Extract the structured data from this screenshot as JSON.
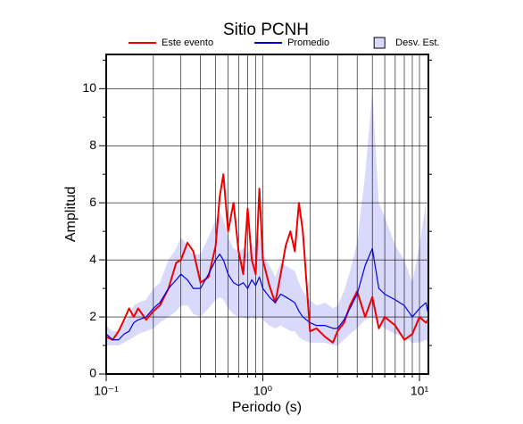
{
  "chart_data": {
    "type": "line",
    "title": "Sitio PCNH",
    "xlabel": "Periodo (s)",
    "ylabel": "Amplitud",
    "xscale": "log",
    "xlim": [
      0.1,
      11.4
    ],
    "ylim": [
      0,
      11.2
    ],
    "xticks": [
      {
        "value": 0.1,
        "label": "10⁻¹"
      },
      {
        "value": 1,
        "label": "10⁰"
      },
      {
        "value": 10,
        "label": "10¹"
      }
    ],
    "xminorticks": [
      0.2,
      0.3,
      0.4,
      0.5,
      0.6,
      0.7,
      0.8,
      0.9,
      2,
      3,
      4,
      5,
      6,
      7,
      8,
      9
    ],
    "yticks": [
      0,
      2,
      4,
      6,
      8,
      10
    ],
    "yminorticks": [
      1,
      3,
      5,
      7,
      9,
      11
    ],
    "grid": true,
    "legend": "top",
    "x": [
      0.1,
      0.11,
      0.12,
      0.13,
      0.14,
      0.15,
      0.16,
      0.18,
      0.2,
      0.22,
      0.25,
      0.28,
      0.3,
      0.33,
      0.36,
      0.4,
      0.45,
      0.5,
      0.53,
      0.56,
      0.6,
      0.65,
      0.7,
      0.75,
      0.8,
      0.85,
      0.9,
      0.95,
      1.0,
      1.1,
      1.2,
      1.3,
      1.4,
      1.5,
      1.6,
      1.7,
      1.8,
      2.0,
      2.2,
      2.5,
      2.8,
      3.0,
      3.3,
      3.6,
      4.0,
      4.5,
      5.0,
      5.5,
      6.0,
      7.0,
      8.0,
      9.0,
      10.0,
      11.0,
      11.4
    ],
    "series": [
      {
        "name": "Este evento",
        "color": "#ee0000",
        "width": 2,
        "values": [
          1.3,
          1.2,
          1.5,
          1.9,
          2.3,
          2.0,
          2.3,
          1.9,
          2.2,
          2.4,
          3.0,
          3.9,
          4.0,
          4.6,
          4.3,
          3.2,
          3.4,
          4.5,
          6.2,
          7.0,
          5.0,
          6.0,
          4.3,
          3.5,
          5.8,
          4.0,
          3.5,
          6.5,
          4.0,
          3.1,
          2.5,
          3.5,
          4.5,
          5.0,
          4.3,
          6.0,
          5.0,
          1.5,
          1.6,
          1.3,
          1.1,
          1.5,
          1.8,
          2.4,
          2.9,
          2.0,
          2.7,
          1.6,
          2.0,
          1.7,
          1.2,
          1.4,
          2.0,
          1.8,
          1.9
        ]
      },
      {
        "name": "Promedio",
        "color": "#0000dd",
        "width": 1.2,
        "values": [
          1.4,
          1.2,
          1.2,
          1.4,
          1.5,
          1.8,
          1.9,
          2.0,
          2.3,
          2.5,
          3.0,
          3.3,
          3.5,
          3.3,
          3.0,
          3.0,
          3.5,
          4.0,
          4.2,
          4.0,
          3.5,
          3.2,
          3.1,
          3.2,
          3.0,
          3.3,
          3.1,
          3.4,
          3.0,
          2.7,
          2.5,
          2.8,
          2.7,
          2.6,
          2.5,
          2.2,
          2.0,
          1.8,
          1.7,
          1.7,
          1.6,
          1.6,
          1.9,
          2.3,
          2.8,
          3.8,
          4.4,
          3.0,
          2.8,
          2.6,
          2.4,
          2.0,
          2.3,
          2.5,
          2.1
        ]
      }
    ],
    "band": {
      "name": "Desv. Est.",
      "color": "#d9d9fb",
      "lower": [
        1.0,
        1.0,
        1.0,
        1.1,
        1.2,
        1.3,
        1.4,
        1.5,
        1.6,
        1.8,
        2.0,
        2.2,
        2.4,
        2.4,
        2.1,
        2.0,
        2.3,
        2.6,
        2.7,
        2.6,
        2.3,
        2.1,
        2.0,
        2.0,
        1.9,
        2.0,
        1.9,
        2.0,
        1.9,
        1.7,
        1.6,
        1.7,
        1.6,
        1.5,
        1.5,
        1.3,
        1.2,
        1.1,
        1.1,
        1.1,
        1.0,
        1.0,
        1.2,
        1.4,
        1.6,
        1.9,
        2.0,
        1.8,
        1.6,
        1.4,
        1.3,
        1.1,
        1.1,
        1.2,
        1.1
      ],
      "upper": [
        1.7,
        1.5,
        1.5,
        1.8,
        2.0,
        2.4,
        2.5,
        2.6,
        3.0,
        3.2,
        4.0,
        4.4,
        4.8,
        4.5,
        4.2,
        4.2,
        4.8,
        5.4,
        5.7,
        5.4,
        4.8,
        4.4,
        4.3,
        4.4,
        4.2,
        4.6,
        4.4,
        4.8,
        4.2,
        3.8,
        3.4,
        3.9,
        3.8,
        3.7,
        3.6,
        3.2,
        2.9,
        2.6,
        2.4,
        2.5,
        2.3,
        2.4,
        2.9,
        3.6,
        4.6,
        7.0,
        9.9,
        6.0,
        5.5,
        4.5,
        4.0,
        3.2,
        4.5,
        6.0,
        3.5
      ]
    }
  }
}
